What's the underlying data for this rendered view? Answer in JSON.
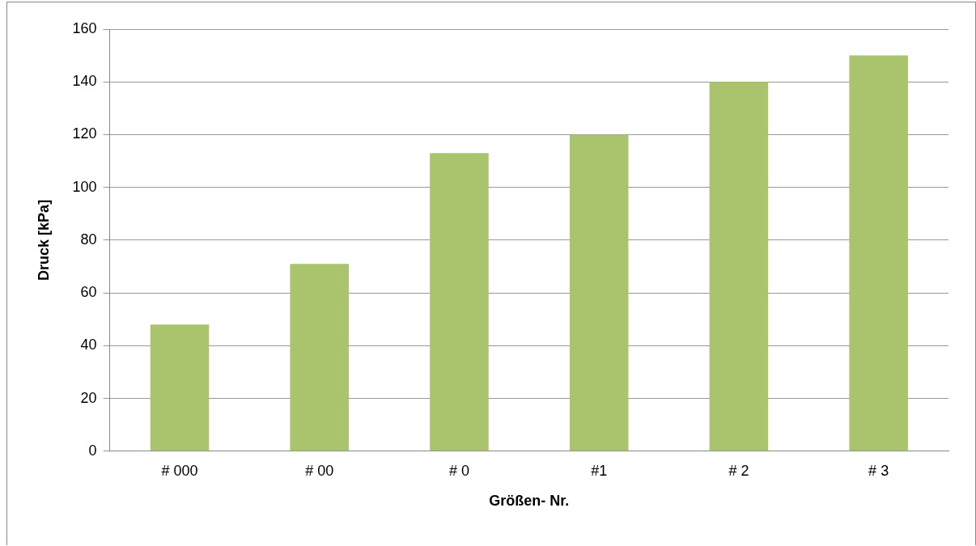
{
  "chart_data": {
    "type": "bar",
    "xlabel": "Größen- Nr.",
    "ylabel": "Druck [kPa]",
    "categories": [
      "# 000",
      "# 00",
      "# 0",
      "#1",
      "# 2",
      "# 3"
    ],
    "values": [
      48,
      71,
      113,
      120,
      140,
      150
    ],
    "color": "#a9c46c",
    "ylim": [
      0,
      160
    ],
    "yticks": [
      0,
      20,
      40,
      60,
      80,
      100,
      120,
      140,
      160
    ],
    "grid": "y",
    "legend": false
  }
}
